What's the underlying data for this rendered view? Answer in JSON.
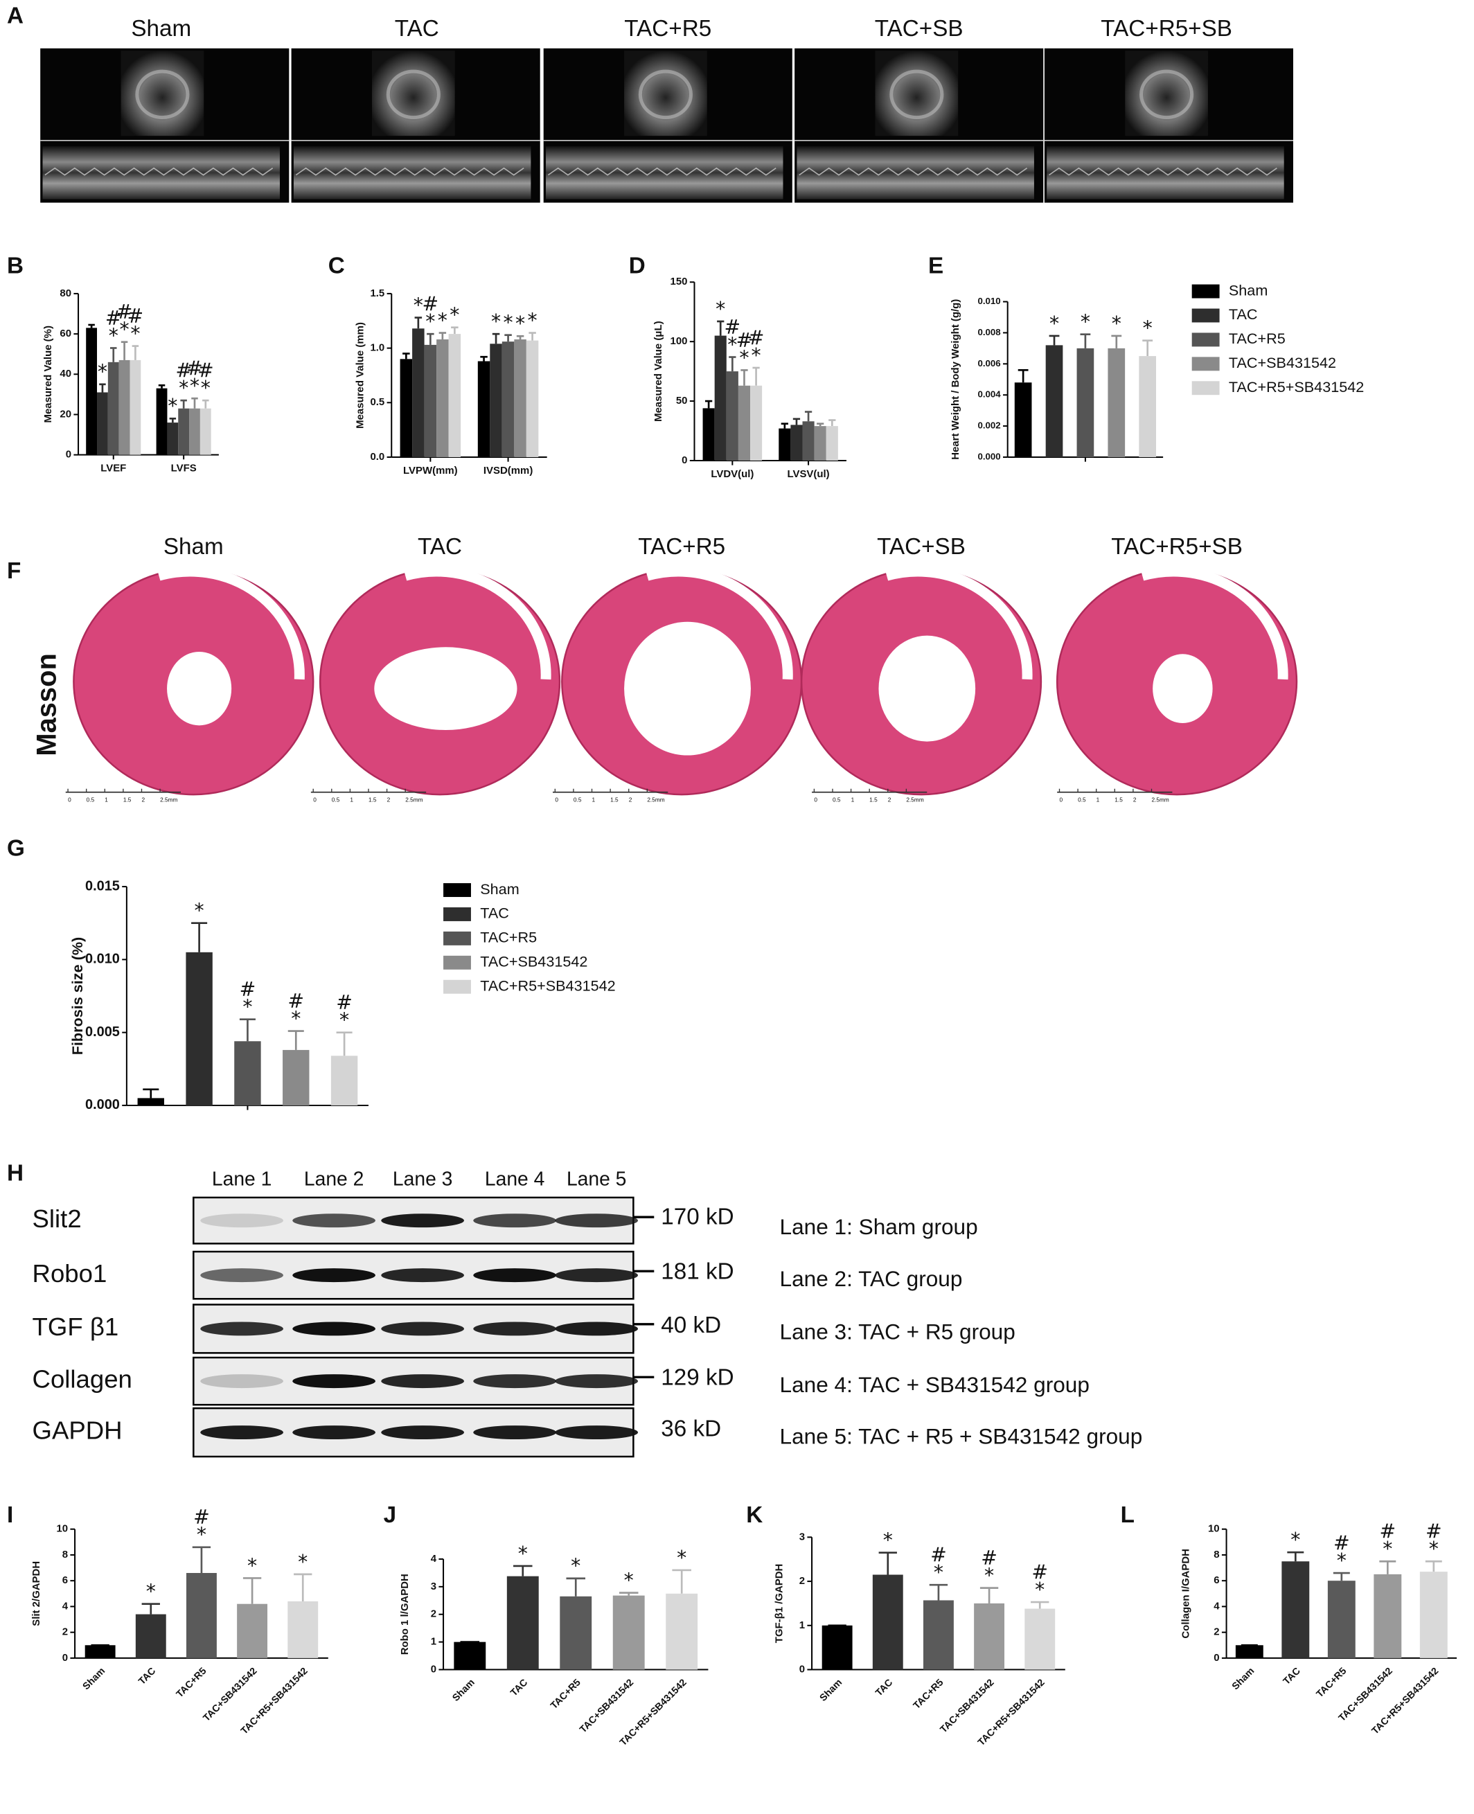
{
  "panel_a": {
    "label": "A",
    "titles": [
      "Sham",
      "TAC",
      "TAC+R5",
      "TAC+SB",
      "TAC+R5+SB"
    ]
  },
  "panel_f": {
    "label": "F",
    "titles": [
      "Sham",
      "TAC",
      "TAC+R5",
      "TAC+SB",
      "TAC+R5+SB"
    ],
    "stain": "Masson",
    "scale": [
      "0",
      "0.5",
      "1",
      "1.5",
      "2",
      "2.5mm"
    ]
  },
  "panel_h": {
    "label": "H",
    "lanes": [
      "Lane 1",
      "Lane 2",
      "Lane 3",
      "Lane 4",
      "Lane 5"
    ],
    "rows": [
      {
        "name": "Slit2",
        "size": "170 kD"
      },
      {
        "name": "Robo1",
        "size": "181 kD"
      },
      {
        "name": "TGF β1",
        "size": "40 kD"
      },
      {
        "name": "Collagen",
        "size": "129 kD"
      },
      {
        "name": "GAPDH",
        "size": "36 kD"
      }
    ],
    "key": [
      "Lane 1: Sham group",
      "Lane 2: TAC group",
      "Lane 3: TAC + R5 group",
      "Lane 4: TAC + SB431542 group",
      "Lane 5: TAC + R5 + SB431542 group"
    ]
  },
  "chart_data": [
    {
      "type": "bar",
      "label": "B",
      "ylabel": "Measured Value (%)",
      "ylim": [
        0,
        80
      ],
      "yticks": [
        0,
        20,
        40,
        60,
        80
      ],
      "categories": [
        "LVEF",
        "LVFS"
      ],
      "series": [
        {
          "color": "#000000",
          "values": [
            63,
            33
          ],
          "errors": [
            1.5,
            1.5
          ],
          "annotations": [
            null,
            null
          ]
        },
        {
          "color": "#2e2e2e",
          "values": [
            31,
            16
          ],
          "errors": [
            4,
            2
          ],
          "annotations": [
            [
              "*"
            ],
            [
              "*"
            ]
          ]
        },
        {
          "color": "#555555",
          "values": [
            46,
            23
          ],
          "errors": [
            7,
            4
          ],
          "annotations": [
            [
              "*",
              "#"
            ],
            [
              "*",
              "#"
            ]
          ]
        },
        {
          "color": "#8a8a8a",
          "values": [
            47,
            23
          ],
          "errors": [
            9,
            5
          ],
          "annotations": [
            [
              "*",
              "#"
            ],
            [
              "*",
              "#"
            ]
          ]
        },
        {
          "color": "#d4d4d4",
          "values": [
            47,
            23
          ],
          "errors": [
            7,
            4
          ],
          "annotations": [
            [
              "*",
              "#"
            ],
            [
              "*",
              "#"
            ]
          ]
        }
      ]
    },
    {
      "type": "bar",
      "label": "C",
      "ylabel": "Measured Value (mm)",
      "ylim": [
        0,
        1.5
      ],
      "yticks": [
        {
          "value": 0,
          "label": "0.0"
        },
        {
          "value": 0.5,
          "label": "0.5"
        },
        {
          "value": 1,
          "label": "1.0"
        },
        {
          "value": 1.5,
          "label": "1.5"
        }
      ],
      "categories": [
        "LVPW(mm)",
        "IVSD(mm)"
      ],
      "series": [
        {
          "color": "#000000",
          "values": [
            0.9,
            0.88
          ],
          "errors": [
            0.05,
            0.04
          ],
          "annotations": [
            null,
            null
          ]
        },
        {
          "color": "#2e2e2e",
          "values": [
            1.18,
            1.04
          ],
          "errors": [
            0.1,
            0.09
          ],
          "annotations": [
            [
              "*"
            ],
            [
              "*"
            ]
          ]
        },
        {
          "color": "#555555",
          "values": [
            1.03,
            1.06
          ],
          "errors": [
            0.1,
            0.06
          ],
          "annotations": [
            [
              "*",
              "#"
            ],
            [
              "*"
            ]
          ]
        },
        {
          "color": "#8a8a8a",
          "values": [
            1.08,
            1.08
          ],
          "errors": [
            0.06,
            0.03
          ],
          "annotations": [
            [
              "*"
            ],
            [
              "*"
            ]
          ]
        },
        {
          "color": "#d4d4d4",
          "values": [
            1.13,
            1.07
          ],
          "errors": [
            0.06,
            0.07
          ],
          "annotations": [
            [
              "*"
            ],
            [
              "*"
            ]
          ]
        }
      ]
    },
    {
      "type": "bar",
      "label": "D",
      "ylabel": "Measured Value (μL)",
      "ylim": [
        0,
        150
      ],
      "yticks": [
        0,
        50,
        100,
        150
      ],
      "categories": [
        "LVDV(ul)",
        "LVSV(ul)"
      ],
      "series": [
        {
          "color": "#000000",
          "values": [
            44,
            27
          ],
          "errors": [
            6,
            4
          ],
          "annotations": [
            null,
            null
          ]
        },
        {
          "color": "#2e2e2e",
          "values": [
            105,
            30
          ],
          "errors": [
            12,
            5
          ],
          "annotations": [
            [
              "*"
            ],
            null
          ]
        },
        {
          "color": "#555555",
          "values": [
            75,
            33
          ],
          "errors": [
            12,
            8
          ],
          "annotations": [
            [
              "*",
              "#"
            ],
            null
          ]
        },
        {
          "color": "#8a8a8a",
          "values": [
            63,
            29
          ],
          "errors": [
            13,
            2
          ],
          "annotations": [
            [
              "*",
              "#"
            ],
            null
          ]
        },
        {
          "color": "#d4d4d4",
          "values": [
            63,
            29
          ],
          "errors": [
            15,
            5
          ],
          "annotations": [
            [
              "*",
              "#"
            ],
            null
          ]
        }
      ]
    },
    {
      "type": "bar",
      "label": "E",
      "ylabel": "Heart Weight / Body Weight (g/g)",
      "ylim": [
        0,
        0.01
      ],
      "yticks": [
        {
          "value": 0,
          "label": "0.000"
        },
        {
          "value": 0.002,
          "label": "0.002"
        },
        {
          "value": 0.004,
          "label": "0.004"
        },
        {
          "value": 0.006,
          "label": "0.006"
        },
        {
          "value": 0.008,
          "label": "0.008"
        },
        {
          "value": 0.01,
          "label": "0.010"
        }
      ],
      "categories": [
        null
      ],
      "legend": "right",
      "series": [
        {
          "name": "Sham",
          "color": "#000000",
          "values": [
            0.0048
          ],
          "errors": [
            0.0008
          ],
          "annotations": [
            null
          ]
        },
        {
          "name": "TAC",
          "color": "#2e2e2e",
          "values": [
            0.0072
          ],
          "errors": [
            0.0006
          ],
          "annotations": [
            [
              "*"
            ]
          ]
        },
        {
          "name": "TAC+R5",
          "color": "#555555",
          "values": [
            0.007
          ],
          "errors": [
            0.0009
          ],
          "annotations": [
            [
              "*"
            ]
          ]
        },
        {
          "name": "TAC+SB431542",
          "color": "#8a8a8a",
          "values": [
            0.007
          ],
          "errors": [
            0.0008
          ],
          "annotations": [
            [
              "*"
            ]
          ]
        },
        {
          "name": "TAC+R5+SB431542",
          "color": "#d4d4d4",
          "values": [
            0.0065
          ],
          "errors": [
            0.001
          ],
          "annotations": [
            [
              "*"
            ]
          ]
        }
      ]
    },
    {
      "type": "bar",
      "label": "G",
      "ylabel": "Fibrosis size (%)",
      "ylim": [
        0,
        0.015
      ],
      "yticks": [
        {
          "value": 0,
          "label": "0.000"
        },
        {
          "value": 0.005,
          "label": "0.005"
        },
        {
          "value": 0.01,
          "label": "0.010"
        },
        {
          "value": 0.015,
          "label": "0.015"
        }
      ],
      "categories": [
        null
      ],
      "legend": "right",
      "series": [
        {
          "name": "Sham",
          "color": "#000000",
          "values": [
            0.0005
          ],
          "errors": [
            0.0006
          ],
          "annotations": [
            null
          ]
        },
        {
          "name": "TAC",
          "color": "#2e2e2e",
          "values": [
            0.0105
          ],
          "errors": [
            0.002
          ],
          "annotations": [
            [
              "*"
            ]
          ]
        },
        {
          "name": "TAC+R5",
          "color": "#555555",
          "values": [
            0.0044
          ],
          "errors": [
            0.0015
          ],
          "annotations": [
            [
              "*",
              "#"
            ]
          ]
        },
        {
          "name": "TAC+SB431542",
          "color": "#8a8a8a",
          "values": [
            0.0038
          ],
          "errors": [
            0.0013
          ],
          "annotations": [
            [
              "*",
              "#"
            ]
          ]
        },
        {
          "name": "TAC+R5+SB431542",
          "color": "#d4d4d4",
          "values": [
            0.0034
          ],
          "errors": [
            0.0016
          ],
          "annotations": [
            [
              "*",
              "#"
            ]
          ]
        }
      ]
    },
    {
      "type": "bar",
      "label": "I",
      "ylabel": "Slit 2/GAPDH",
      "ylim": [
        0,
        10
      ],
      "yticks": [
        0,
        2,
        4,
        6,
        8,
        10
      ],
      "categories": [
        "Sham",
        "TAC",
        "TAC+R5",
        "TAC+SB431542",
        "TAC+R5+SB431542"
      ],
      "colors": [
        "#000000",
        "#333333",
        "#5a5a5a",
        "#9a9a9a",
        "#d9d9d9"
      ],
      "values": [
        1,
        3.4,
        6.6,
        4.2,
        4.4
      ],
      "errors": [
        0,
        0.8,
        2,
        2,
        2.1
      ],
      "annotations": [
        null,
        [
          "*"
        ],
        [
          "*",
          "#"
        ],
        [
          "*"
        ],
        [
          "*"
        ]
      ]
    },
    {
      "type": "bar",
      "label": "J",
      "ylabel": "Robo 1 l/GAPDH",
      "ylim": [
        0,
        4
      ],
      "yticks": [
        0,
        1,
        2,
        3,
        4
      ],
      "categories": [
        "Sham",
        "TAC",
        "TAC+R5",
        "TAC+SB431542",
        "TAC+R5+SB431542"
      ],
      "colors": [
        "#000000",
        "#333333",
        "#5a5a5a",
        "#9a9a9a",
        "#d9d9d9"
      ],
      "values": [
        1,
        3.38,
        2.65,
        2.68,
        2.75
      ],
      "errors": [
        0,
        0.37,
        0.65,
        0.1,
        0.85
      ],
      "annotations": [
        null,
        [
          "*"
        ],
        [
          "*"
        ],
        [
          "*"
        ],
        [
          "*"
        ]
      ]
    },
    {
      "type": "bar",
      "label": "K",
      "ylabel": "TGF-β1 /GAPDH",
      "ylim": [
        0,
        3
      ],
      "yticks": [
        0,
        1,
        2,
        3
      ],
      "categories": [
        "Sham",
        "TAC",
        "TAC+R5",
        "TAC+SB431542",
        "TAC+R5+SB431542"
      ],
      "colors": [
        "#000000",
        "#333333",
        "#5a5a5a",
        "#9a9a9a",
        "#d9d9d9"
      ],
      "values": [
        1,
        2.15,
        1.57,
        1.5,
        1.38
      ],
      "errors": [
        0,
        0.5,
        0.35,
        0.35,
        0.15
      ],
      "annotations": [
        null,
        [
          "*"
        ],
        [
          "*",
          "#"
        ],
        [
          "*",
          "#"
        ],
        [
          "*",
          "#"
        ]
      ]
    },
    {
      "type": "bar",
      "label": "L",
      "ylabel": "Collagen I/GAPDH",
      "ylim": [
        0,
        10
      ],
      "yticks": [
        0,
        2,
        4,
        6,
        8,
        10
      ],
      "categories": [
        "Sham",
        "TAC",
        "TAC+R5",
        "TAC+SB431542",
        "TAC+R5+SB431542"
      ],
      "colors": [
        "#000000",
        "#333333",
        "#5a5a5a",
        "#9a9a9a",
        "#d9d9d9"
      ],
      "values": [
        1,
        7.5,
        6,
        6.5,
        6.7
      ],
      "errors": [
        0,
        0.7,
        0.6,
        1,
        0.8
      ],
      "annotations": [
        null,
        [
          "*"
        ],
        [
          "*",
          "#"
        ],
        [
          "*",
          "#"
        ],
        [
          "*",
          "#"
        ]
      ]
    }
  ]
}
